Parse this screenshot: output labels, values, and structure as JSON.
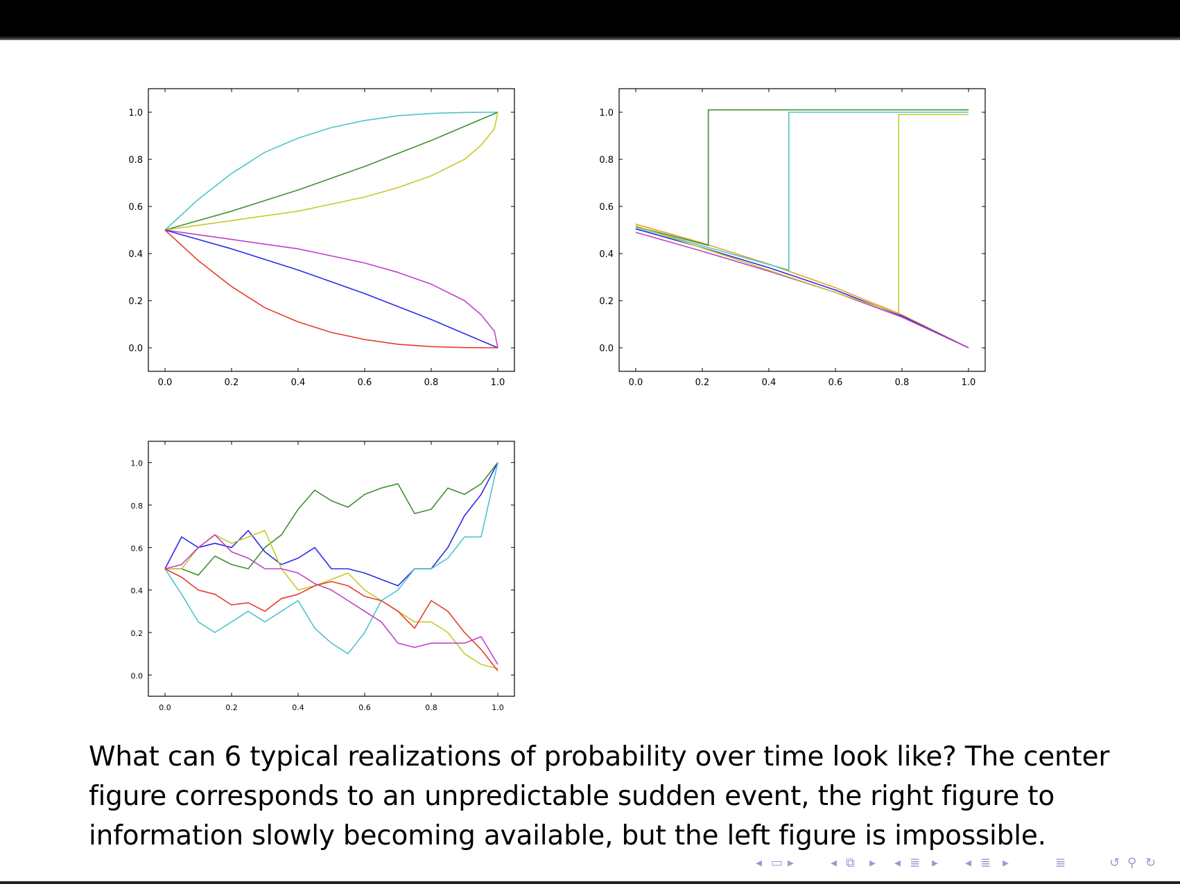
{
  "caption": "What can 6 typical realizations of probability over time look like? The center figure corresponds to an unpredictable sudden event, the right figure to information slowly becoming available, but the left figure is impossible.",
  "navigation_icons": [
    "triangle-left-icon",
    "frame-icon",
    "triangle-right-icon",
    "triangle-left-icon",
    "subsection-icon",
    "triangle-right-icon",
    "triangle-left-icon",
    "section-icon",
    "triangle-right-icon",
    "triangle-left-icon",
    "toc-icon",
    "triangle-right-icon",
    "align-icon",
    "undo-icon",
    "search-icon",
    "redo-icon"
  ],
  "chart_data": [
    {
      "id": "smooth",
      "type": "line",
      "title": "",
      "xlabel": "",
      "ylabel": "",
      "xlim": [
        -0.05,
        1.05
      ],
      "ylim": [
        -0.1,
        1.1
      ],
      "xticks": [
        "0.0",
        "0.2",
        "0.4",
        "0.6",
        "0.8",
        "1.0"
      ],
      "yticks": [
        "0.0",
        "0.2",
        "0.4",
        "0.6",
        "0.8",
        "1.0"
      ],
      "grid": false,
      "series": [
        {
          "color": "#4bc4c9",
          "x": [
            0,
            0.1,
            0.2,
            0.3,
            0.4,
            0.5,
            0.6,
            0.7,
            0.8,
            0.9,
            1.0
          ],
          "y": [
            0.5,
            0.63,
            0.74,
            0.83,
            0.89,
            0.935,
            0.965,
            0.985,
            0.995,
            0.999,
            1.0
          ]
        },
        {
          "color": "#3f8f2f",
          "x": [
            0,
            0.1,
            0.2,
            0.3,
            0.4,
            0.5,
            0.6,
            0.7,
            0.8,
            0.9,
            1.0
          ],
          "y": [
            0.5,
            0.54,
            0.58,
            0.625,
            0.67,
            0.72,
            0.77,
            0.825,
            0.88,
            0.94,
            1.0
          ]
        },
        {
          "color": "#c8c828",
          "x": [
            0,
            0.1,
            0.2,
            0.3,
            0.4,
            0.5,
            0.6,
            0.7,
            0.8,
            0.9,
            0.95,
            0.99,
            1.0
          ],
          "y": [
            0.5,
            0.52,
            0.54,
            0.56,
            0.58,
            0.61,
            0.64,
            0.68,
            0.73,
            0.8,
            0.86,
            0.93,
            1.0
          ]
        },
        {
          "color": "#c040c8",
          "x": [
            0,
            0.1,
            0.2,
            0.3,
            0.4,
            0.5,
            0.6,
            0.7,
            0.8,
            0.9,
            0.95,
            0.99,
            1.0
          ],
          "y": [
            0.5,
            0.48,
            0.46,
            0.44,
            0.42,
            0.39,
            0.36,
            0.32,
            0.27,
            0.2,
            0.14,
            0.07,
            0.0
          ]
        },
        {
          "color": "#2a2ae8",
          "x": [
            0,
            0.1,
            0.2,
            0.3,
            0.4,
            0.5,
            0.6,
            0.7,
            0.8,
            0.9,
            1.0
          ],
          "y": [
            0.5,
            0.46,
            0.42,
            0.375,
            0.33,
            0.28,
            0.23,
            0.175,
            0.12,
            0.06,
            0.0
          ]
        },
        {
          "color": "#e83a2a",
          "x": [
            0,
            0.1,
            0.2,
            0.3,
            0.4,
            0.5,
            0.6,
            0.7,
            0.8,
            0.9,
            1.0
          ],
          "y": [
            0.5,
            0.37,
            0.26,
            0.17,
            0.11,
            0.065,
            0.035,
            0.015,
            0.005,
            0.001,
            0.0
          ]
        }
      ]
    },
    {
      "id": "sudden",
      "type": "line",
      "title": "",
      "xlabel": "",
      "ylabel": "",
      "xlim": [
        -0.05,
        1.05
      ],
      "ylim": [
        -0.1,
        1.1
      ],
      "xticks": [
        "0.0",
        "0.2",
        "0.4",
        "0.6",
        "0.8",
        "1.0"
      ],
      "yticks": [
        "0.0",
        "0.2",
        "0.4",
        "0.6",
        "0.8",
        "1.0"
      ],
      "grid": false,
      "series": [
        {
          "color": "#e8a020",
          "x": [
            0,
            0.2,
            0.4,
            0.6,
            0.8,
            1.0
          ],
          "y": [
            0.525,
            0.445,
            0.355,
            0.255,
            0.14,
            0.0
          ]
        },
        {
          "color": "#2a2ae8",
          "x": [
            0,
            0.2,
            0.4,
            0.6,
            0.8,
            1.0
          ],
          "y": [
            0.505,
            0.425,
            0.34,
            0.245,
            0.135,
            0.0
          ]
        },
        {
          "color": "#c040c8",
          "x": [
            0,
            0.2,
            0.4,
            0.6,
            0.8,
            1.0
          ],
          "y": [
            0.49,
            0.41,
            0.325,
            0.235,
            0.13,
            0.0
          ]
        },
        {
          "color": "#3f8f2f",
          "x": [
            0,
            0.218,
            0.218,
            1.0
          ],
          "y": [
            0.515,
            0.435,
            1.01,
            1.01
          ]
        },
        {
          "color": "#4bc4c9",
          "x": [
            0,
            0.46,
            0.46,
            1.0
          ],
          "y": [
            0.512,
            0.33,
            1.0,
            1.0
          ]
        },
        {
          "color": "#c8c828",
          "x": [
            0,
            0.79,
            0.79,
            1.0
          ],
          "y": [
            0.518,
            0.145,
            0.99,
            0.99
          ]
        }
      ]
    },
    {
      "id": "random-walk",
      "type": "line",
      "title": "",
      "xlabel": "",
      "ylabel": "",
      "xlim": [
        -0.05,
        1.05
      ],
      "ylim": [
        -0.1,
        1.1
      ],
      "xticks": [
        "0.0",
        "0.2",
        "0.4",
        "0.6",
        "0.8",
        "1.0"
      ],
      "yticks": [
        "0.0",
        "0.2",
        "0.4",
        "0.6",
        "0.8",
        "1.0"
      ],
      "grid": false,
      "series": [
        {
          "color": "#3f8f2f",
          "x": [
            0,
            0.05,
            0.1,
            0.15,
            0.2,
            0.25,
            0.3,
            0.35,
            0.4,
            0.45,
            0.5,
            0.55,
            0.6,
            0.65,
            0.7,
            0.75,
            0.8,
            0.85,
            0.9,
            0.95,
            1.0
          ],
          "y": [
            0.5,
            0.5,
            0.47,
            0.56,
            0.52,
            0.5,
            0.6,
            0.66,
            0.78,
            0.87,
            0.82,
            0.79,
            0.85,
            0.88,
            0.9,
            0.76,
            0.78,
            0.88,
            0.85,
            0.9,
            1.0
          ]
        },
        {
          "color": "#2a2ae8",
          "x": [
            0,
            0.05,
            0.1,
            0.15,
            0.2,
            0.25,
            0.3,
            0.35,
            0.4,
            0.45,
            0.5,
            0.55,
            0.6,
            0.65,
            0.7,
            0.75,
            0.8,
            0.85,
            0.9,
            0.95,
            1.0
          ],
          "y": [
            0.5,
            0.65,
            0.6,
            0.62,
            0.6,
            0.68,
            0.58,
            0.52,
            0.55,
            0.6,
            0.5,
            0.5,
            0.48,
            0.45,
            0.42,
            0.5,
            0.5,
            0.6,
            0.75,
            0.85,
            1.0
          ]
        },
        {
          "color": "#4bc4c9",
          "x": [
            0,
            0.05,
            0.1,
            0.15,
            0.2,
            0.25,
            0.3,
            0.35,
            0.4,
            0.45,
            0.5,
            0.55,
            0.6,
            0.65,
            0.7,
            0.75,
            0.8,
            0.85,
            0.9,
            0.95,
            1.0
          ],
          "y": [
            0.5,
            0.38,
            0.25,
            0.2,
            0.25,
            0.3,
            0.25,
            0.3,
            0.35,
            0.22,
            0.15,
            0.1,
            0.2,
            0.35,
            0.4,
            0.5,
            0.5,
            0.55,
            0.65,
            0.65,
            1.0
          ]
        },
        {
          "color": "#c8c828",
          "x": [
            0,
            0.05,
            0.1,
            0.15,
            0.2,
            0.25,
            0.3,
            0.35,
            0.4,
            0.45,
            0.5,
            0.55,
            0.6,
            0.65,
            0.7,
            0.75,
            0.8,
            0.85,
            0.9,
            0.95,
            1.0
          ],
          "y": [
            0.5,
            0.5,
            0.6,
            0.66,
            0.62,
            0.65,
            0.68,
            0.5,
            0.4,
            0.42,
            0.45,
            0.48,
            0.4,
            0.35,
            0.3,
            0.25,
            0.25,
            0.2,
            0.1,
            0.05,
            0.03
          ]
        },
        {
          "color": "#c040c8",
          "x": [
            0,
            0.05,
            0.1,
            0.15,
            0.2,
            0.25,
            0.3,
            0.35,
            0.4,
            0.45,
            0.5,
            0.55,
            0.6,
            0.65,
            0.7,
            0.75,
            0.8,
            0.85,
            0.9,
            0.95,
            1.0
          ],
          "y": [
            0.5,
            0.52,
            0.6,
            0.66,
            0.58,
            0.55,
            0.5,
            0.5,
            0.48,
            0.43,
            0.4,
            0.35,
            0.3,
            0.25,
            0.15,
            0.13,
            0.15,
            0.15,
            0.15,
            0.18,
            0.05
          ]
        },
        {
          "color": "#e83a2a",
          "x": [
            0,
            0.05,
            0.1,
            0.15,
            0.2,
            0.25,
            0.3,
            0.35,
            0.4,
            0.45,
            0.5,
            0.55,
            0.6,
            0.65,
            0.7,
            0.75,
            0.8,
            0.85,
            0.9,
            0.95,
            1.0
          ],
          "y": [
            0.5,
            0.46,
            0.4,
            0.38,
            0.33,
            0.34,
            0.3,
            0.36,
            0.38,
            0.42,
            0.44,
            0.42,
            0.37,
            0.35,
            0.3,
            0.22,
            0.35,
            0.3,
            0.2,
            0.12,
            0.02
          ]
        }
      ]
    }
  ]
}
